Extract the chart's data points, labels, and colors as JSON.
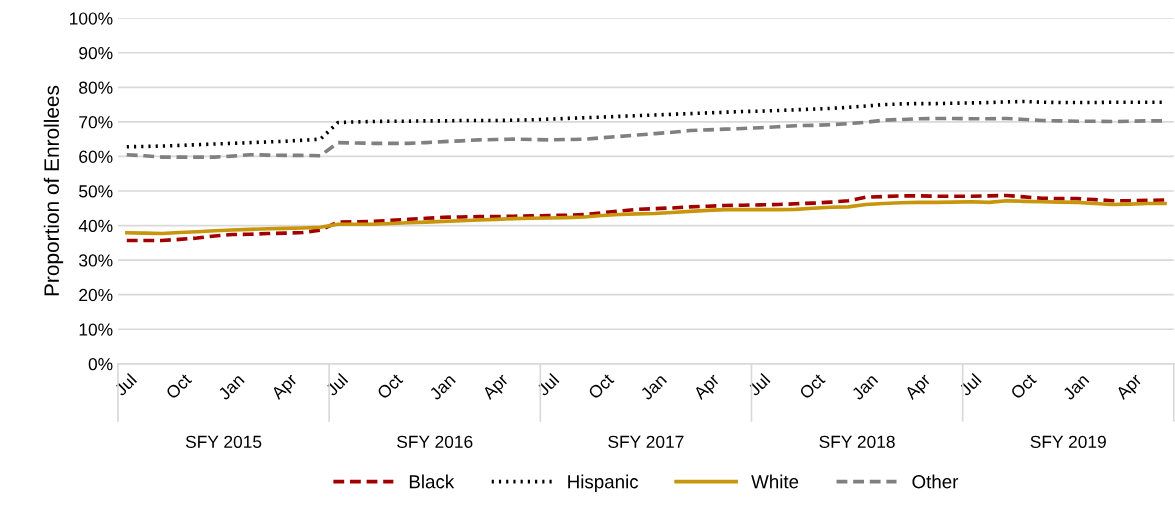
{
  "chart_data": {
    "type": "line",
    "ylabel": "Proportion of Enrollees",
    "categories": [
      "Jul",
      null,
      null,
      "Oct",
      null,
      null,
      "Jan",
      null,
      null,
      "Apr",
      null,
      null,
      "Jul",
      null,
      null,
      "Oct",
      null,
      null,
      "Jan",
      null,
      null,
      "Apr",
      null,
      null,
      "Jul",
      null,
      null,
      "Oct",
      null,
      null,
      "Jan",
      null,
      null,
      "Apr",
      null,
      null,
      "Jul",
      null,
      null,
      "Oct",
      null,
      null,
      "Jan",
      null,
      null,
      "Apr",
      null,
      null,
      "Jul",
      null,
      null,
      "Oct",
      null,
      null,
      "Jan",
      null,
      null,
      "Apr",
      null,
      null
    ],
    "annotations": [
      "SFY 2015",
      "SFY 2016",
      "SFY 2017",
      "SFY 2018",
      "SFY 2019"
    ],
    "ylim": [
      0,
      100
    ],
    "yticks": [
      {
        "value": 0,
        "label": "0%"
      },
      {
        "value": 10,
        "label": "10%"
      },
      {
        "value": 20,
        "label": "20%"
      },
      {
        "value": 30,
        "label": "30%"
      },
      {
        "value": 40,
        "label": "40%"
      },
      {
        "value": 50,
        "label": "50%"
      },
      {
        "value": 60,
        "label": "60%"
      },
      {
        "value": 70,
        "label": "70%"
      },
      {
        "value": 80,
        "label": "80%"
      },
      {
        "value": 90,
        "label": "90%"
      },
      {
        "value": 100,
        "label": "100%"
      }
    ],
    "grid": "y",
    "legend": "bottom",
    "marker": "none",
    "series": [
      {
        "name": "Black",
        "color": "#a00000",
        "line_style": "dashed",
        "values": [
          35.7,
          35.7,
          35.7,
          36.0,
          36.4,
          37.0,
          37.4,
          37.5,
          37.7,
          37.8,
          38.0,
          38.7,
          41.0,
          41.1,
          41.2,
          41.5,
          41.8,
          42.1,
          42.4,
          42.5,
          42.6,
          42.6,
          42.7,
          42.8,
          42.9,
          43.0,
          43.2,
          43.7,
          44.2,
          44.7,
          44.9,
          45.1,
          45.4,
          45.6,
          45.8,
          45.9,
          46.0,
          46.1,
          46.3,
          46.5,
          46.8,
          47.2,
          48.2,
          48.4,
          48.6,
          48.6,
          48.5,
          48.5,
          48.5,
          48.6,
          48.7,
          48.3,
          47.9,
          47.8,
          47.8,
          47.5,
          47.2,
          47.2,
          47.3,
          47.4
        ]
      },
      {
        "name": "Hispanic",
        "color": "#000000",
        "line_style": "dotted",
        "values": [
          62.8,
          62.9,
          63.0,
          63.2,
          63.4,
          63.6,
          63.8,
          64.0,
          64.2,
          64.4,
          64.7,
          65.0,
          69.8,
          70.0,
          70.1,
          70.2,
          70.2,
          70.3,
          70.3,
          70.4,
          70.4,
          70.4,
          70.5,
          70.6,
          70.8,
          71.0,
          71.2,
          71.4,
          71.6,
          71.8,
          72.0,
          72.2,
          72.4,
          72.6,
          72.8,
          73.0,
          73.1,
          73.3,
          73.5,
          73.7,
          73.9,
          74.2,
          74.6,
          75.0,
          75.2,
          75.3,
          75.3,
          75.4,
          75.5,
          75.6,
          75.8,
          75.9,
          75.7,
          75.6,
          75.6,
          75.6,
          75.7,
          75.7,
          75.7,
          75.7
        ]
      },
      {
        "name": "White",
        "color": "#c8960c",
        "line_style": "solid",
        "values": [
          37.9,
          37.8,
          37.7,
          38.0,
          38.2,
          38.5,
          38.7,
          38.9,
          39.1,
          39.2,
          39.3,
          39.5,
          40.4,
          40.4,
          40.4,
          40.6,
          40.8,
          41.0,
          41.2,
          41.4,
          41.6,
          41.8,
          42.0,
          42.1,
          42.2,
          42.3,
          42.5,
          42.9,
          43.2,
          43.4,
          43.5,
          43.8,
          44.1,
          44.4,
          44.6,
          44.6,
          44.6,
          44.6,
          44.7,
          45.0,
          45.3,
          45.4,
          46.1,
          46.4,
          46.6,
          46.7,
          46.7,
          46.8,
          46.9,
          46.7,
          47.2,
          47.0,
          46.9,
          46.8,
          46.7,
          46.4,
          46.1,
          46.2,
          46.4,
          46.4
        ]
      },
      {
        "name": "Other",
        "color": "#808080",
        "line_style": "dashed",
        "values": [
          60.5,
          60.2,
          59.8,
          59.8,
          59.8,
          59.8,
          60.1,
          60.5,
          60.4,
          60.3,
          60.3,
          60.2,
          64.0,
          63.9,
          63.8,
          63.8,
          63.8,
          64.0,
          64.3,
          64.5,
          64.8,
          64.9,
          65.0,
          64.9,
          64.8,
          64.9,
          65.0,
          65.4,
          65.8,
          66.2,
          66.6,
          67.0,
          67.5,
          67.7,
          67.9,
          68.1,
          68.3,
          68.6,
          68.9,
          69.0,
          69.2,
          69.5,
          69.9,
          70.5,
          70.7,
          70.9,
          71.0,
          71.0,
          70.9,
          70.9,
          71.0,
          70.7,
          70.4,
          70.3,
          70.2,
          70.2,
          70.1,
          70.2,
          70.3,
          70.3
        ]
      }
    ]
  }
}
